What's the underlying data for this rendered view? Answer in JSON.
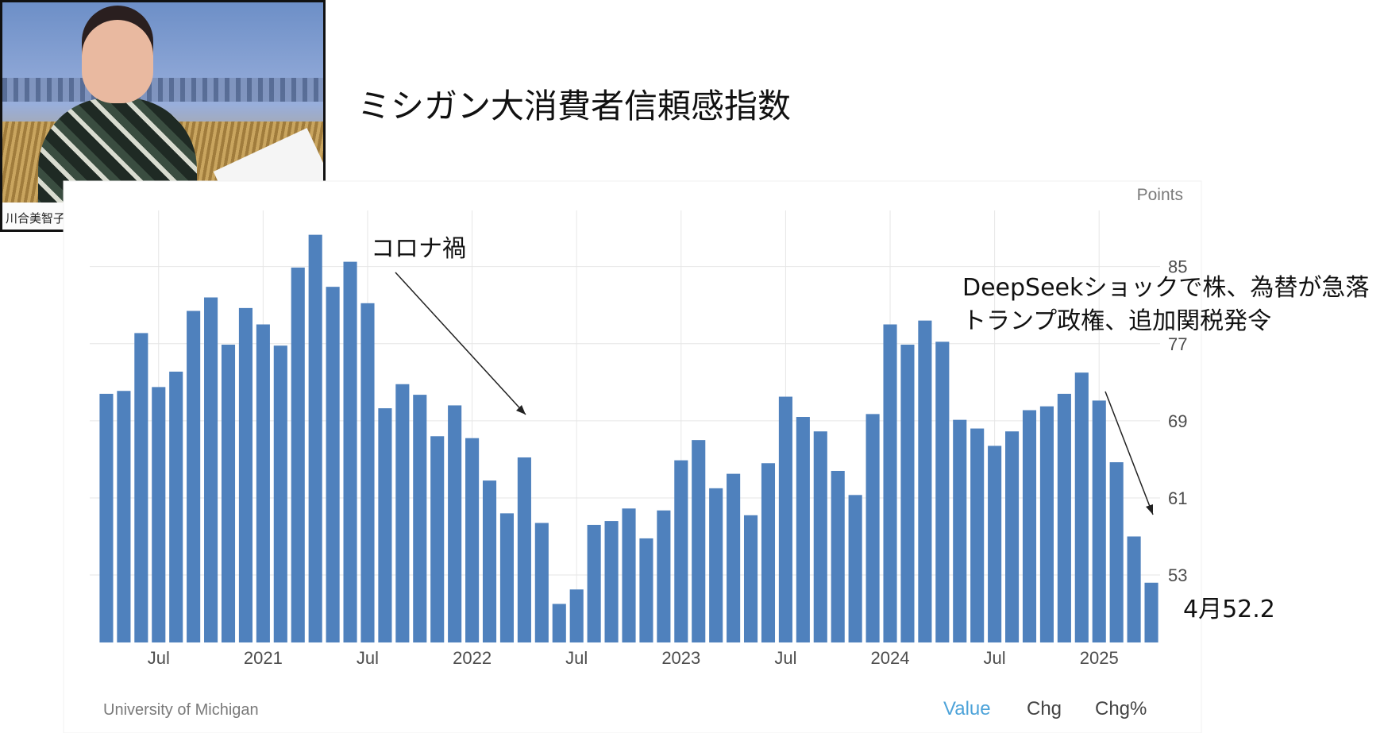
{
  "slide": {
    "title": "ミシガン大消費者信頼感指数",
    "notes": {
      "corona": "コロナ禍",
      "deepseek_line1": "DeepSeekショックで株、為替が急落",
      "deepseek_line2": "トランプ政権、追加関税発令",
      "april": "4月52.2"
    }
  },
  "video": {
    "name_tag": "川合美智子"
  },
  "footer": {
    "source": "University of Michigan",
    "tabs": [
      {
        "label": "Value",
        "active": true
      },
      {
        "label": "Chg",
        "active": false
      },
      {
        "label": "Chg%",
        "active": false
      }
    ]
  },
  "colors": {
    "bar": "#4f81bd",
    "grid": "#e6e6e6",
    "active_tab": "#4da3d9"
  },
  "chart_data": {
    "type": "bar",
    "unit": "Points",
    "source": "University of Michigan",
    "ylim": [
      46,
      90
    ],
    "yticks": [
      53,
      61,
      69,
      77,
      85
    ],
    "grid": true,
    "x_tick_labels": [
      {
        "label": "Jul",
        "index": 3
      },
      {
        "label": "2021",
        "index": 9
      },
      {
        "label": "Jul",
        "index": 15
      },
      {
        "label": "2022",
        "index": 21
      },
      {
        "label": "Jul",
        "index": 27
      },
      {
        "label": "2023",
        "index": 33
      },
      {
        "label": "Jul",
        "index": 39
      },
      {
        "label": "2024",
        "index": 45
      },
      {
        "label": "Jul",
        "index": 51
      },
      {
        "label": "2025",
        "index": 57
      }
    ],
    "values": [
      71.8,
      72.1,
      78.1,
      72.5,
      74.1,
      80.4,
      81.8,
      76.9,
      80.7,
      79.0,
      76.8,
      84.9,
      88.3,
      82.9,
      85.5,
      81.2,
      70.3,
      72.8,
      71.7,
      67.4,
      70.6,
      67.2,
      62.8,
      59.4,
      65.2,
      58.4,
      50.0,
      51.5,
      58.2,
      58.6,
      59.9,
      56.8,
      59.7,
      64.9,
      67.0,
      62.0,
      63.5,
      59.2,
      64.6,
      71.5,
      69.4,
      67.9,
      63.8,
      61.3,
      69.7,
      79.0,
      76.9,
      79.4,
      77.2,
      69.1,
      68.2,
      66.4,
      67.9,
      70.1,
      70.5,
      71.8,
      74.0,
      71.1,
      64.7,
      57.0,
      52.2
    ]
  }
}
